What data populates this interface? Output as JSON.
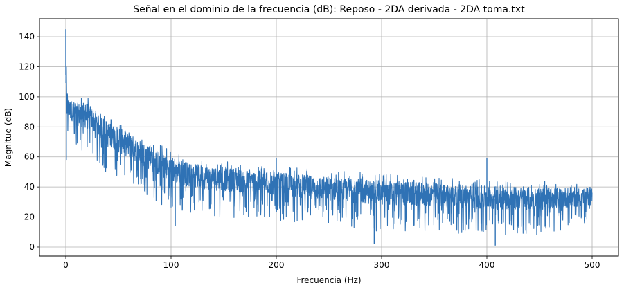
{
  "chart_data": {
    "type": "line",
    "title": "Señal en el dominio de la frecuencia (dB): Reposo - 2DA derivada - 2DA toma.txt",
    "xlabel": "Frecuencia (Hz)",
    "ylabel": "Magnitud (dB)",
    "xlim": [
      -25,
      525
    ],
    "ylim": [
      -6,
      152
    ],
    "xticks": [
      0,
      100,
      200,
      300,
      400,
      500
    ],
    "yticks": [
      0,
      20,
      40,
      60,
      80,
      100,
      120,
      140
    ],
    "grid": true,
    "series": [
      {
        "color": "#2f72b5",
        "envelope": {
          "x": [
            0,
            1,
            3,
            10,
            20,
            30,
            40,
            50,
            60,
            70,
            80,
            90,
            100,
            120,
            150,
            200,
            250,
            300,
            350,
            400,
            450,
            500
          ],
          "upper": [
            145,
            105,
            102,
            100,
            101,
            96,
            88,
            84,
            80,
            76,
            72,
            68,
            65,
            60,
            57,
            54,
            51,
            49,
            47,
            45,
            44,
            43
          ],
          "lower": [
            58,
            70,
            72,
            65,
            60,
            55,
            48,
            45,
            42,
            38,
            33,
            28,
            25,
            22,
            20,
            18,
            14,
            10,
            10,
            8,
            8,
            15
          ]
        },
        "spikes": [
          {
            "x": 0,
            "y": 145
          },
          {
            "x": 0.5,
            "y": 58
          },
          {
            "x": 200,
            "y": 59
          },
          {
            "x": 400,
            "y": 59
          },
          {
            "x": 104,
            "y": 14
          },
          {
            "x": 293,
            "y": 2
          },
          {
            "x": 408,
            "y": 1
          }
        ]
      }
    ]
  }
}
